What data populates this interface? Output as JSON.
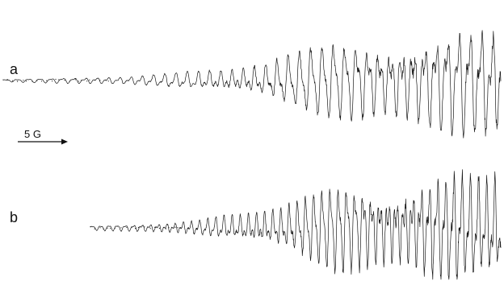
{
  "chart_data": {
    "type": "line",
    "title": "",
    "xlabel": "",
    "ylabel": "",
    "grid": false,
    "legend": "none",
    "colors": {
      "trace": "#1a1a1a",
      "background": "#ffffff"
    },
    "scale_bar": {
      "label": "5 G",
      "direction": "right"
    },
    "panels": [
      {
        "label": "a",
        "description_visible": false,
        "lines": 44,
        "envelope": [
          0.02,
          0.03,
          0.05,
          0.08,
          0.14,
          0.22,
          0.33,
          0.46,
          0.6,
          0.76,
          0.92,
          1.0
        ],
        "seed": 7
      },
      {
        "label": "b",
        "description_visible": false,
        "lines": 50,
        "envelope": [
          0.03,
          0.05,
          0.09,
          0.16,
          0.26,
          0.38,
          0.52,
          0.66,
          0.8,
          0.92,
          1.0,
          0.98
        ],
        "seed": 13
      }
    ]
  }
}
